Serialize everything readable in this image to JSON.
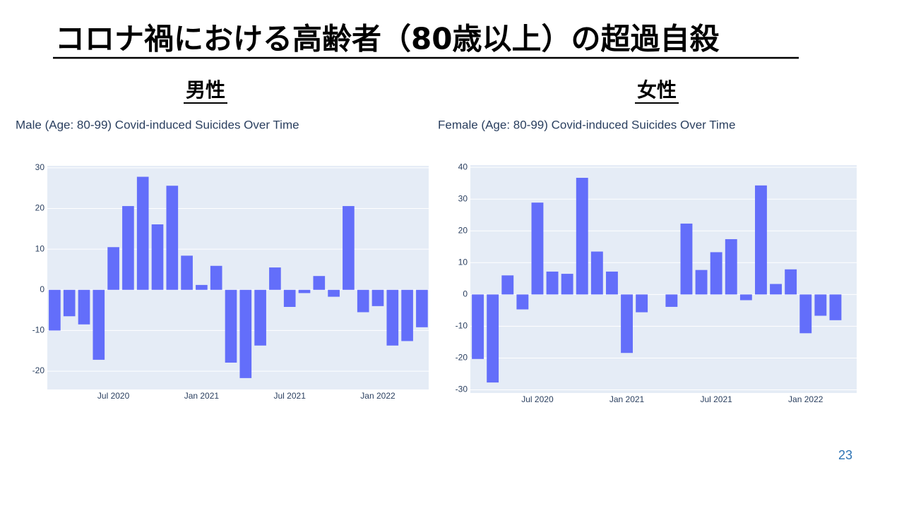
{
  "slide_title": "コロナ禍における高齢者（80歳以上）の超過自殺",
  "headings": [
    "男性",
    "女性"
  ],
  "page_number": "23",
  "chart_data": [
    {
      "type": "bar",
      "title": "Male (Age: 80-99) Covid-induced Suicides Over Time",
      "categories": [
        null,
        null,
        null,
        null,
        "Jul 2020",
        null,
        null,
        null,
        null,
        null,
        "Jan 2021",
        null,
        null,
        null,
        null,
        null,
        "Jul 2021",
        null,
        null,
        null,
        null,
        null,
        "Jan 2022",
        null,
        null,
        null
      ],
      "values": [
        -10,
        -6.5,
        -8.5,
        -17.2,
        10.5,
        20.6,
        27.8,
        16.1,
        25.6,
        8.4,
        1.2,
        5.9,
        -17.9,
        -21.7,
        -13.7,
        5.5,
        -4.2,
        -0.8,
        3.4,
        -1.7,
        20.6,
        -5.5,
        -4,
        -13.7,
        -12.6,
        -9.2
      ],
      "color": "#636efa",
      "ylim": [
        -24.5,
        30.5
      ],
      "yticks": [
        -20,
        -10,
        0,
        10,
        20,
        30
      ],
      "grid": true
    },
    {
      "type": "bar",
      "title": "Female (Age: 80-99) Covid-induced Suicides Over Time",
      "categories": [
        null,
        null,
        null,
        null,
        "Jul 2020",
        null,
        null,
        null,
        null,
        null,
        "Jan 2021",
        null,
        null,
        null,
        null,
        null,
        "Jul 2021",
        null,
        null,
        null,
        null,
        null,
        "Jan 2022",
        null,
        null
      ],
      "values": [
        -20.3,
        -27.7,
        6,
        -4.7,
        28.9,
        7.2,
        6.5,
        36.7,
        13.5,
        7.2,
        -18.4,
        -5.6,
        0,
        -3.9,
        22.3,
        7.7,
        13.3,
        17.4,
        -1.8,
        34.3,
        3.3,
        7.9,
        -12.2,
        -6.7,
        -8.1
      ],
      "color": "#636efa",
      "ylim": [
        -31,
        40.7
      ],
      "yticks": [
        -30,
        -20,
        -10,
        0,
        10,
        20,
        30,
        40
      ],
      "grid": true
    }
  ]
}
